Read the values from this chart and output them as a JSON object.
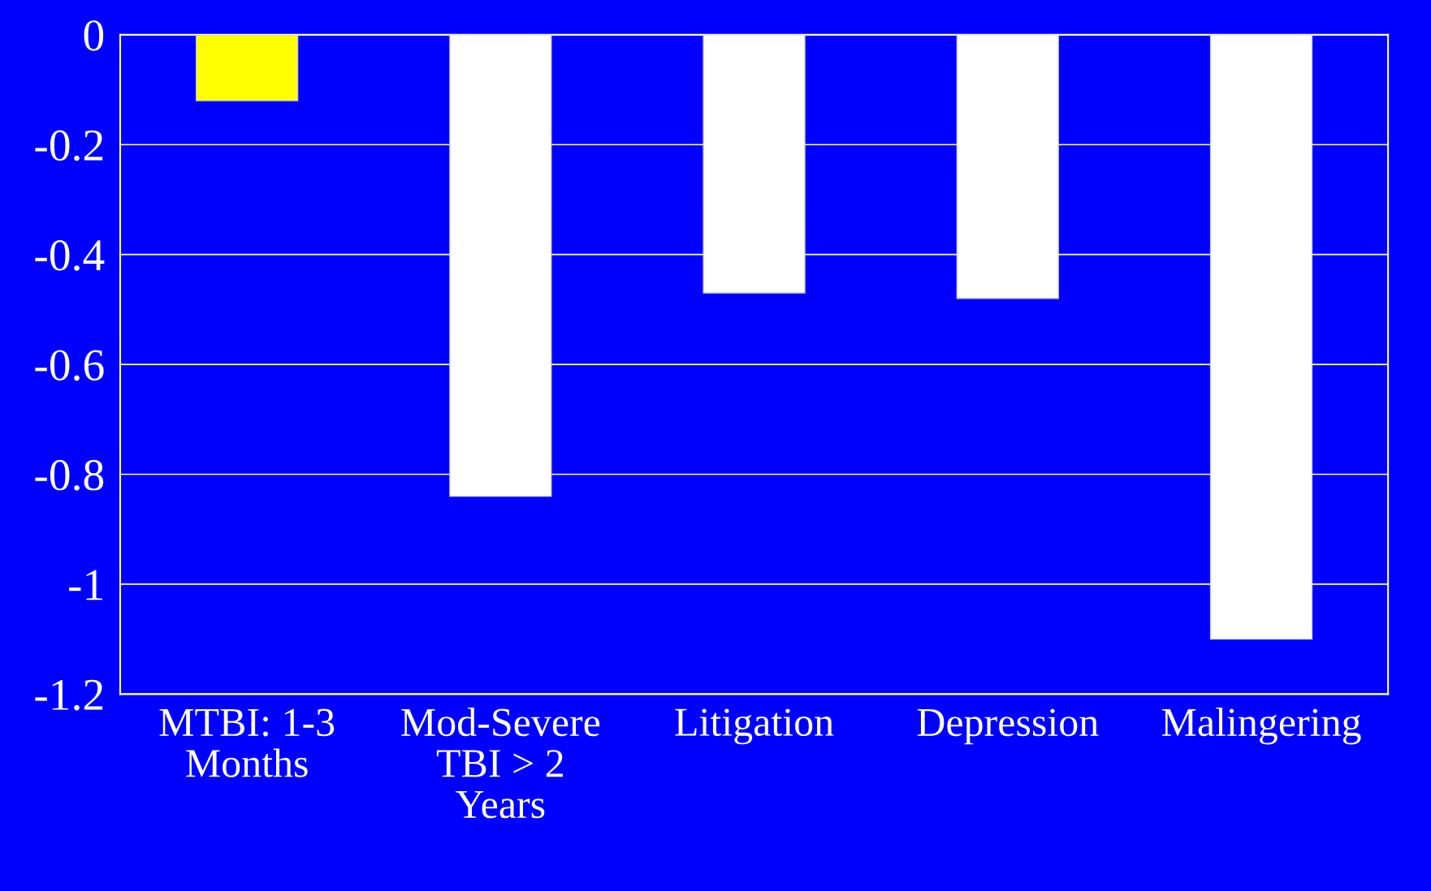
{
  "chart_data": {
    "type": "bar",
    "categories": [
      "MTBI: 1-3\nMonths",
      "Mod-Severe\nTBI > 2\nYears",
      "Litigation",
      "Depression",
      "Malingering"
    ],
    "values": [
      -0.12,
      -0.84,
      -0.47,
      -0.48,
      -1.1
    ],
    "colors": [
      "#ffff00",
      "#ffffff",
      "#ffffff",
      "#ffffff",
      "#ffffff"
    ],
    "ylim": [
      -1.2,
      0
    ],
    "yticks": [
      {
        "value": 0,
        "label": "0"
      },
      {
        "value": -0.2,
        "label": "-0.2"
      },
      {
        "value": -0.4,
        "label": "-0.4"
      },
      {
        "value": -0.6,
        "label": "-0.6"
      },
      {
        "value": -0.8,
        "label": "-0.8"
      },
      {
        "value": -1,
        "label": "-1"
      },
      {
        "value": -1.2,
        "label": "-1.2"
      }
    ],
    "grid": "y"
  }
}
